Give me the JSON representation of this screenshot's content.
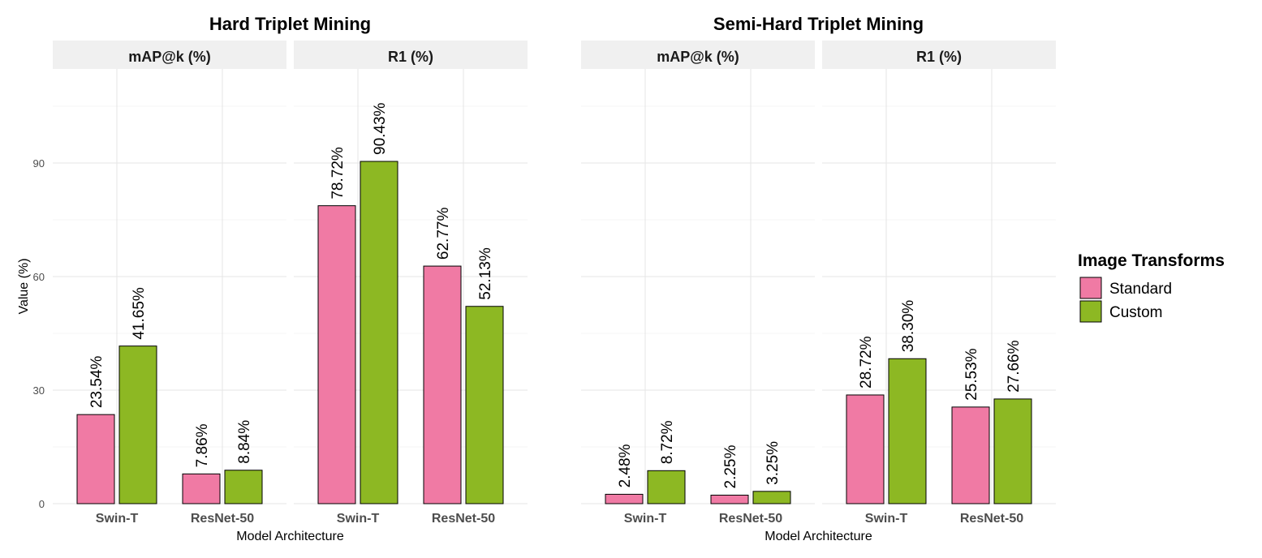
{
  "chart_data": {
    "type": "bar",
    "ylabel": "Value (%)",
    "xlabel": "Model Architecture",
    "ylim": [
      0,
      115
    ],
    "yticks": [
      0,
      30,
      60,
      90
    ],
    "categories": [
      "Swin-T",
      "ResNet-50"
    ],
    "legend": {
      "title": "Image Transforms",
      "position": "right",
      "items": [
        {
          "name": "Standard",
          "color": "#f07aa4"
        },
        {
          "name": "Custom",
          "color": "#8db823"
        }
      ]
    },
    "groups": [
      {
        "title": "Hard Triplet Mining",
        "panels": [
          {
            "strip": "mAP@k (%)",
            "series": [
              {
                "name": "Standard",
                "values": [
                  23.54,
                  7.86
                ],
                "labels": [
                  "23.54%",
                  "7.86%"
                ]
              },
              {
                "name": "Custom",
                "values": [
                  41.65,
                  8.84
                ],
                "labels": [
                  "41.65%",
                  "8.84%"
                ]
              }
            ]
          },
          {
            "strip": "R1 (%)",
            "series": [
              {
                "name": "Standard",
                "values": [
                  78.72,
                  62.77
                ],
                "labels": [
                  "78.72%",
                  "62.77%"
                ]
              },
              {
                "name": "Custom",
                "values": [
                  90.43,
                  52.13
                ],
                "labels": [
                  "90.43%",
                  "52.13%"
                ]
              }
            ]
          }
        ]
      },
      {
        "title": "Semi-Hard Triplet Mining",
        "panels": [
          {
            "strip": "mAP@k (%)",
            "series": [
              {
                "name": "Standard",
                "values": [
                  2.48,
                  2.25
                ],
                "labels": [
                  "2.48%",
                  "2.25%"
                ]
              },
              {
                "name": "Custom",
                "values": [
                  8.72,
                  3.25
                ],
                "labels": [
                  "8.72%",
                  "3.25%"
                ]
              }
            ]
          },
          {
            "strip": "R1 (%)",
            "series": [
              {
                "name": "Standard",
                "values": [
                  28.72,
                  25.53
                ],
                "labels": [
                  "28.72%",
                  "25.53%"
                ]
              },
              {
                "name": "Custom",
                "values": [
                  38.3,
                  27.66
                ],
                "labels": [
                  "38.30%",
                  "27.66%"
                ]
              }
            ]
          }
        ]
      }
    ]
  }
}
